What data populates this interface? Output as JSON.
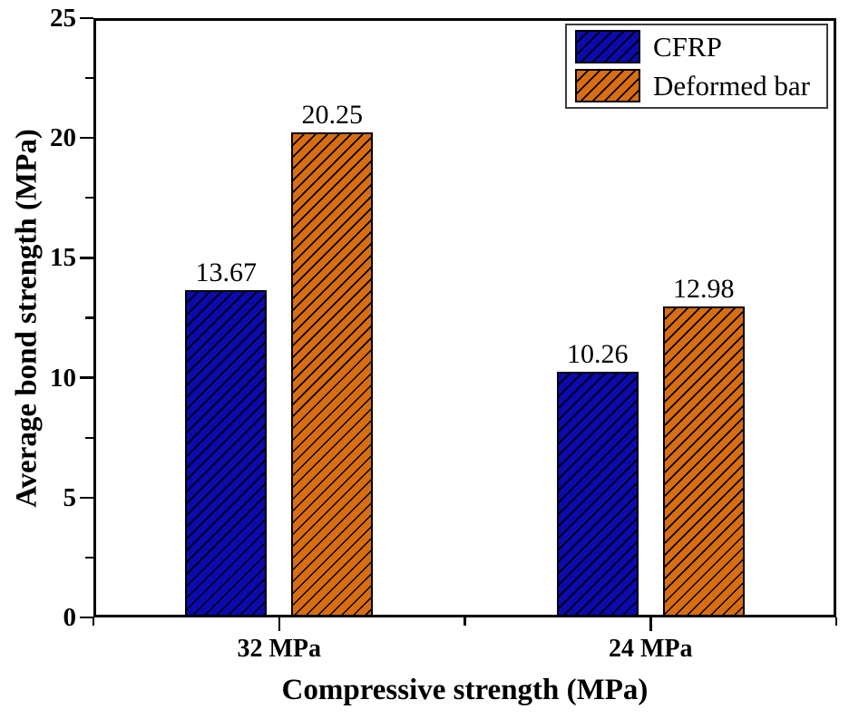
{
  "chart_data": {
    "type": "bar",
    "title": "",
    "xlabel": "Compressive strength (MPa)",
    "ylabel": "Average bond strength (MPa)",
    "categories": [
      "32 MPa",
      "24 MPa"
    ],
    "series": [
      {
        "name": "CFRP",
        "color": "#0a0aad",
        "values": [
          13.67,
          10.26
        ]
      },
      {
        "name": "Deformed bar",
        "color": "#d86e10",
        "values": [
          20.25,
          12.98
        ]
      }
    ],
    "value_labels": [
      "13.67",
      "10.26",
      "20.25",
      "12.98"
    ],
    "ylim": [
      0,
      25
    ],
    "y_major_ticks": [
      0,
      5,
      10,
      15,
      20,
      25
    ],
    "y_minor_ticks": [
      2.5,
      7.5,
      12.5,
      17.5,
      22.5
    ],
    "hatch": "diagonal-forward-slash",
    "grid": false,
    "legend_position": "top-right",
    "frame_color": "#000000",
    "background_color": "#ffffff"
  }
}
